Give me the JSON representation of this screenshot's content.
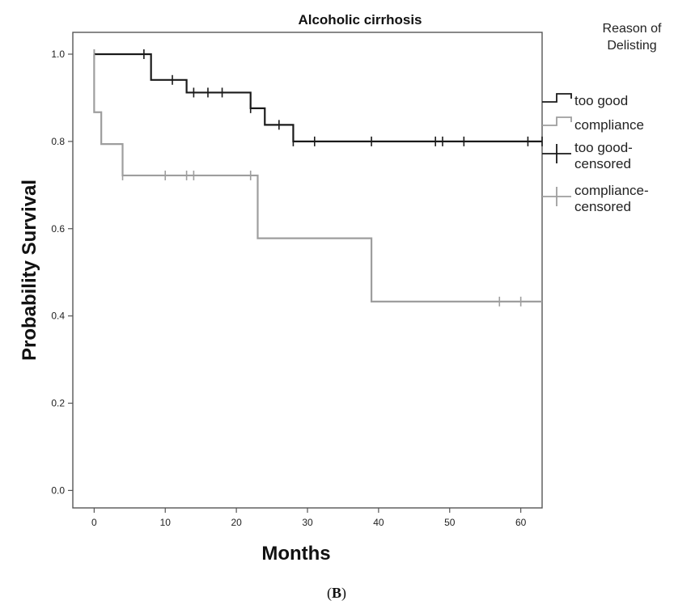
{
  "chart_data": {
    "type": "line",
    "title": "Alcoholic cirrhosis",
    "xlabel": "Months",
    "ylabel": "Probability Survival",
    "xlim": [
      -3,
      63
    ],
    "ylim": [
      -0.04,
      1.05
    ],
    "x_ticks": [
      0,
      10,
      20,
      30,
      40,
      50,
      60
    ],
    "y_ticks": [
      0.0,
      0.2,
      0.4,
      0.6,
      0.8,
      1.0
    ],
    "x_tick_labels": [
      "0",
      "10",
      "20",
      "30",
      "40",
      "50",
      "60"
    ],
    "y_tick_labels": [
      "0.0",
      "0.2",
      "0.4",
      "0.6",
      "0.8",
      "1.0"
    ],
    "grid": false,
    "legend_title": "Reason of Delisting",
    "legend_title_lines": [
      "Reason of",
      "Delisting"
    ],
    "legend_position": "right",
    "legend_entries": [
      {
        "label_lines": [
          "too good"
        ],
        "symbol": "step",
        "color": "#1a1a1a"
      },
      {
        "label_lines": [
          "compliance"
        ],
        "symbol": "step",
        "color": "#9e9e9e"
      },
      {
        "label_lines": [
          "too good-",
          "censored"
        ],
        "symbol": "cross",
        "color": "#1a1a1a"
      },
      {
        "label_lines": [
          "compliance-",
          "censored"
        ],
        "symbol": "cross",
        "color": "#9e9e9e"
      }
    ],
    "series": [
      {
        "name": "too good",
        "color": "#1a1a1a",
        "steps": [
          [
            0,
            1.0
          ],
          [
            8,
            0.941
          ],
          [
            13,
            0.912
          ],
          [
            22,
            0.876
          ],
          [
            24,
            0.838
          ],
          [
            28,
            0.8
          ],
          [
            63,
            0.8
          ]
        ],
        "censored": [
          [
            0,
            1.0
          ],
          [
            7,
            1.0
          ],
          [
            11,
            0.941
          ],
          [
            14,
            0.912
          ],
          [
            16,
            0.912
          ],
          [
            18,
            0.912
          ],
          [
            22,
            0.876
          ],
          [
            26,
            0.838
          ],
          [
            28,
            0.8
          ],
          [
            31,
            0.8
          ],
          [
            39,
            0.8
          ],
          [
            48,
            0.8
          ],
          [
            49,
            0.8
          ],
          [
            52,
            0.8
          ],
          [
            61,
            0.8
          ],
          [
            63,
            0.8
          ]
        ]
      },
      {
        "name": "compliance",
        "color": "#9e9e9e",
        "steps": [
          [
            0,
            1.0
          ],
          [
            0,
            0.867
          ],
          [
            1,
            0.794
          ],
          [
            4,
            0.722
          ],
          [
            23,
            0.578
          ],
          [
            39,
            0.433
          ],
          [
            63,
            0.433
          ]
        ],
        "censored": [
          [
            0,
            1.0
          ],
          [
            4,
            0.722
          ],
          [
            10,
            0.722
          ],
          [
            13,
            0.722
          ],
          [
            14,
            0.722
          ],
          [
            22,
            0.722
          ],
          [
            57,
            0.433
          ],
          [
            60,
            0.433
          ]
        ]
      }
    ]
  },
  "caption": {
    "open": "(",
    "letter": "B",
    "close": ")"
  }
}
